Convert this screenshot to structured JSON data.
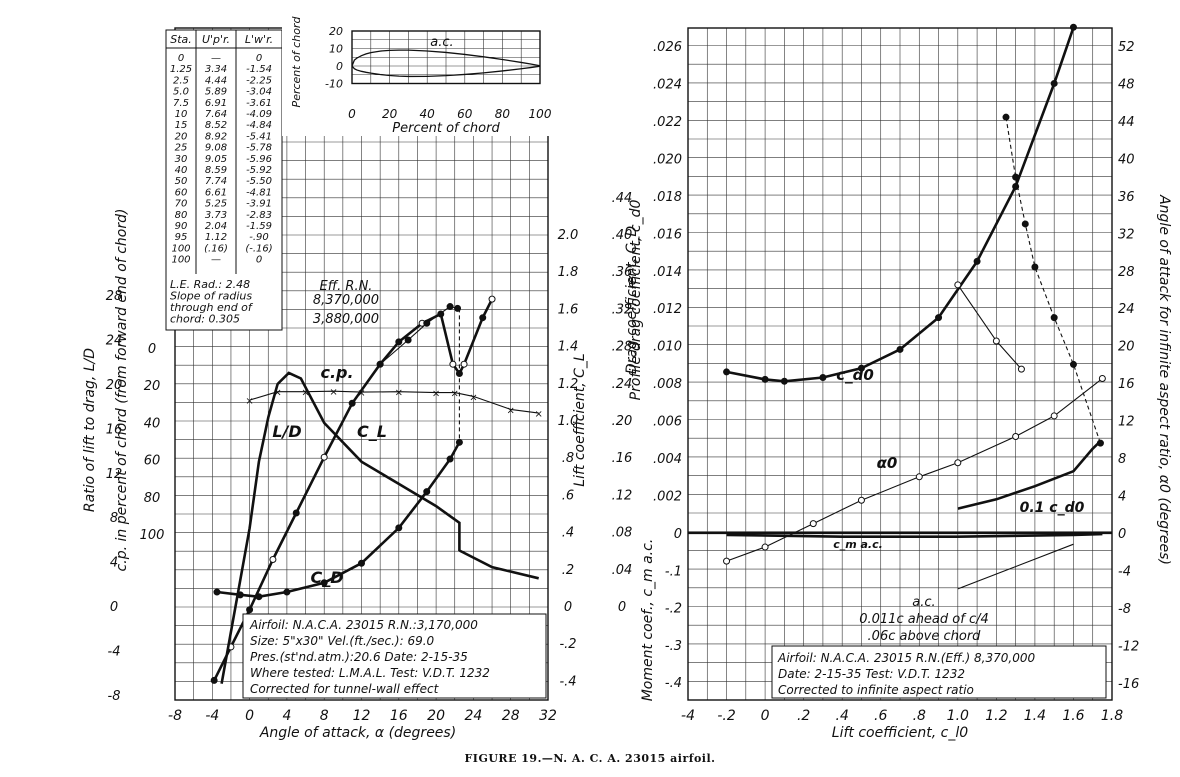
{
  "caption": "FIGURE 19.—N. A. C. A. 23015 airfoil.",
  "chart_data": [
    {
      "panel": "left",
      "type": "line",
      "xlabel": "Angle of attack, α (degrees)",
      "x_ticks": [
        "-8",
        "-4",
        "0",
        "4",
        "8",
        "12",
        "16",
        "20",
        "24",
        "28",
        "32"
      ],
      "xlim": [
        -8,
        32
      ],
      "axes": [
        {
          "label": "Lift coefficient, C_L",
          "range": [
            -0.4,
            2.0
          ],
          "ticks": [
            "-.4",
            "-.2",
            "0",
            ".2",
            ".4",
            ".6",
            ".8",
            "1.0",
            "1.2",
            "1.4",
            "1.6",
            "1.8",
            "2.0"
          ]
        },
        {
          "label": "Drag coefficient, C_D",
          "range": [
            0,
            0.44
          ],
          "ticks": [
            "0",
            ".04",
            ".08",
            ".12",
            ".16",
            ".20",
            ".24",
            ".28",
            ".32",
            ".36",
            ".40",
            ".44"
          ]
        },
        {
          "label": "Ratio of lift to drag, L/D",
          "range": [
            -8,
            28
          ],
          "ticks": [
            "-8",
            "-4",
            "0",
            "4",
            "8",
            "12",
            "16",
            "20",
            "24",
            "28"
          ]
        },
        {
          "label": "c.p. in percent of chord (from forward end of chord)",
          "range": [
            0,
            100
          ],
          "ticks": [
            "0",
            "20",
            "40",
            "60",
            "80",
            "100"
          ]
        }
      ],
      "series": [
        {
          "name": "C_L",
          "points": [
            [
              -3.8,
              -0.4
            ],
            [
              -2,
              -0.22
            ],
            [
              0,
              -0.02
            ],
            [
              2.5,
              0.25
            ],
            [
              5,
              0.5
            ],
            [
              8,
              0.8
            ],
            [
              11,
              1.09
            ],
            [
              14,
              1.3
            ],
            [
              16,
              1.42
            ],
            [
              18.5,
              1.52
            ],
            [
              20.5,
              1.57
            ],
            [
              21.8,
              1.3
            ],
            [
              22.5,
              1.25
            ],
            [
              23,
              1.3
            ],
            [
              25,
              1.55
            ],
            [
              26,
              1.65
            ]
          ]
        },
        {
          "name": "C_L (Eff. R.N. 8,370,000)",
          "points": [
            [
              14,
              1.3
            ],
            [
              17,
              1.43
            ],
            [
              19,
              1.52
            ],
            [
              21.5,
              1.61
            ],
            [
              22.3,
              1.6
            ]
          ]
        },
        {
          "name": "C_D",
          "points": [
            [
              -3.5,
              0.015
            ],
            [
              -1,
              0.012
            ],
            [
              1,
              0.01
            ],
            [
              4,
              0.015
            ],
            [
              8,
              0.025
            ],
            [
              12,
              0.046
            ],
            [
              16,
              0.084
            ],
            [
              19,
              0.123
            ],
            [
              21.5,
              0.158
            ],
            [
              22.5,
              0.176
            ]
          ]
        },
        {
          "name": "L/D",
          "points": [
            [
              -3,
              -7
            ],
            [
              -1.5,
              0
            ],
            [
              0,
              7
            ],
            [
              1,
              13
            ],
            [
              2,
              17
            ],
            [
              3,
              20
            ],
            [
              4.2,
              21
            ],
            [
              5.5,
              20.5
            ],
            [
              8,
              16.5
            ],
            [
              12,
              13
            ],
            [
              16,
              11
            ],
            [
              20,
              9
            ],
            [
              22.5,
              7.5
            ],
            [
              22.5,
              5
            ],
            [
              26,
              3.5
            ],
            [
              31,
              2.5
            ]
          ]
        },
        {
          "name": "c.p.",
          "points": [
            [
              0,
              28
            ],
            [
              3,
              23.5
            ],
            [
              6,
              23.5
            ],
            [
              9,
              23.2
            ],
            [
              12,
              23.7
            ],
            [
              16,
              23.5
            ],
            [
              20,
              24
            ],
            [
              22,
              24
            ],
            [
              24,
              26
            ],
            [
              28,
              33
            ],
            [
              31,
              35
            ]
          ]
        }
      ],
      "legend_labels": [
        "C_L",
        "C_D",
        "L/D",
        "c.p."
      ],
      "rn_labels": [
        "Eff. R.N.",
        "8,370,000",
        "3,880,000"
      ],
      "ordinate_table": {
        "headers": [
          "Sta.",
          "U'p'r.",
          "L'w'r."
        ],
        "rows": [
          [
            "0",
            "—",
            "0"
          ],
          [
            "1.25",
            "3.34",
            "-1.54"
          ],
          [
            "2.5",
            "4.44",
            "-2.25"
          ],
          [
            "5.0",
            "5.89",
            "-3.04"
          ],
          [
            "7.5",
            "6.91",
            "-3.61"
          ],
          [
            "10",
            "7.64",
            "-4.09"
          ],
          [
            "15",
            "8.52",
            "-4.84"
          ],
          [
            "20",
            "8.92",
            "-5.41"
          ],
          [
            "25",
            "9.08",
            "-5.78"
          ],
          [
            "30",
            "9.05",
            "-5.96"
          ],
          [
            "40",
            "8.59",
            "-5.92"
          ],
          [
            "50",
            "7.74",
            "-5.50"
          ],
          [
            "60",
            "6.61",
            "-4.81"
          ],
          [
            "70",
            "5.25",
            "-3.91"
          ],
          [
            "80",
            "3.73",
            "-2.83"
          ],
          [
            "90",
            "2.04",
            "-1.59"
          ],
          [
            "95",
            "1.12",
            "-.90"
          ],
          [
            "100",
            "(.16)",
            "(-.16)"
          ],
          [
            "100",
            "—",
            "0"
          ]
        ],
        "notes": [
          "L.E. Rad.: 2.48",
          "Slope of radius",
          "through end of",
          "chord: 0.305"
        ]
      },
      "inset": {
        "xlabel": "Percent of chord",
        "ylabel": "Percent of chord",
        "x_ticks": [
          "0",
          "20",
          "40",
          "60",
          "80",
          "100"
        ],
        "y_ticks": [
          "20",
          "10",
          "0",
          "-10"
        ],
        "label": "a.c."
      },
      "info_box": [
        "Airfoil: N.A.C.A. 23015    R.N.:3,170,000",
        "Size: 5\"x30\"          Vel.(ft./sec.): 69.0",
        "Pres.(st'nd.atm.):20.6  Date: 2-15-35",
        "Where tested: L.M.A.L. Test: V.D.T. 1232",
        "Corrected for tunnel-wall effect"
      ]
    },
    {
      "panel": "right",
      "type": "line",
      "xlabel": "Lift coefficient, c_l0",
      "x_ticks": [
        "-4",
        "-.2",
        "0",
        ".2",
        ".4",
        ".6",
        ".8",
        "1.0",
        "1.2",
        "1.4",
        "1.6",
        "1.8"
      ],
      "xlim": [
        -0.4,
        1.8
      ],
      "axes": [
        {
          "label": "Profile-drag coefficient, c_d0",
          "range": [
            0,
            0.026
          ],
          "ticks": [
            "0",
            ".002",
            ".004",
            ".006",
            ".008",
            ".010",
            ".012",
            ".014",
            ".016",
            ".018",
            ".020",
            ".022",
            ".024",
            ".026"
          ]
        },
        {
          "label": "Moment coef., c_m a.c.",
          "range": [
            -0.4,
            0
          ],
          "ticks": [
            "-.1",
            "-.2",
            "-.3",
            "-.4"
          ]
        },
        {
          "label": "Angle of attack for infinite aspect ratio, α0 (degrees)",
          "range": [
            -16,
            52
          ],
          "ticks": [
            "-16",
            "-12",
            "-8",
            "-4",
            "0",
            "4",
            "8",
            "12",
            "16",
            "20",
            "24",
            "28",
            "32",
            "36",
            "40",
            "44",
            "48",
            "52"
          ]
        }
      ],
      "series": [
        {
          "name": "c_d0",
          "points": [
            [
              -0.2,
              0.0086
            ],
            [
              0,
              0.0082
            ],
            [
              0.1,
              0.0081
            ],
            [
              0.3,
              0.0083
            ],
            [
              0.5,
              0.0088
            ],
            [
              0.7,
              0.0098
            ],
            [
              0.9,
              0.0115
            ],
            [
              1.1,
              0.0145
            ],
            [
              1.3,
              0.0185
            ],
            [
              1.5,
              0.024
            ],
            [
              1.6,
              0.027
            ]
          ]
        },
        {
          "name": "c_d0 (stalled)",
          "points": [
            [
              1.25,
              0.0222
            ],
            [
              1.3,
              0.019
            ],
            [
              1.35,
              0.0165
            ],
            [
              1.4,
              0.0142
            ],
            [
              1.5,
              0.0115
            ],
            [
              1.6,
              0.009
            ],
            [
              1.74,
              0.0048
            ]
          ]
        },
        {
          "name": "0.1 c_d0",
          "points": [
            [
              1.0,
              0.0013
            ],
            [
              1.2,
              0.0018
            ],
            [
              1.4,
              0.0025
            ],
            [
              1.6,
              0.0033
            ],
            [
              1.7,
              0.0045
            ],
            [
              1.73,
              0.0048
            ]
          ]
        },
        {
          "name": "α0",
          "points": [
            [
              -0.2,
              -3
            ],
            [
              0,
              -1.5
            ],
            [
              0.25,
              1
            ],
            [
              0.5,
              3.5
            ],
            [
              0.8,
              6
            ],
            [
              1.0,
              7.5
            ],
            [
              1.3,
              10.3
            ],
            [
              1.5,
              12.5
            ],
            [
              1.75,
              16.5
            ]
          ]
        },
        {
          "name": "α0 (stalled)",
          "points": [
            [
              1.0,
              26.5
            ],
            [
              1.2,
              20.5
            ],
            [
              1.33,
              17.5
            ]
          ]
        },
        {
          "name": "c_m a.c.",
          "points": [
            [
              -0.2,
              -0.005
            ],
            [
              0.4,
              -0.01
            ],
            [
              1.0,
              -0.01
            ],
            [
              1.6,
              -0.005
            ],
            [
              1.75,
              -0.003
            ]
          ]
        },
        {
          "name": "c_m a.c. (stalled)",
          "points": [
            [
              1.0,
              -0.15
            ],
            [
              1.2,
              -0.11
            ],
            [
              1.4,
              -0.07
            ],
            [
              1.6,
              -0.03
            ]
          ]
        }
      ],
      "legend_labels": [
        "c_d0",
        "α0",
        "0.1 c_d0",
        "c_m a.c."
      ],
      "ac_note": [
        "a.c.",
        "0.011c  ahead of c/4",
        ".06c  above chord"
      ],
      "info_box": [
        "Airfoil: N.A.C.A. 23015    R.N.(Eff.) 8,370,000",
        "Date: 2-15-35            Test: V.D.T. 1232",
        "Corrected to infinite aspect ratio"
      ]
    }
  ]
}
